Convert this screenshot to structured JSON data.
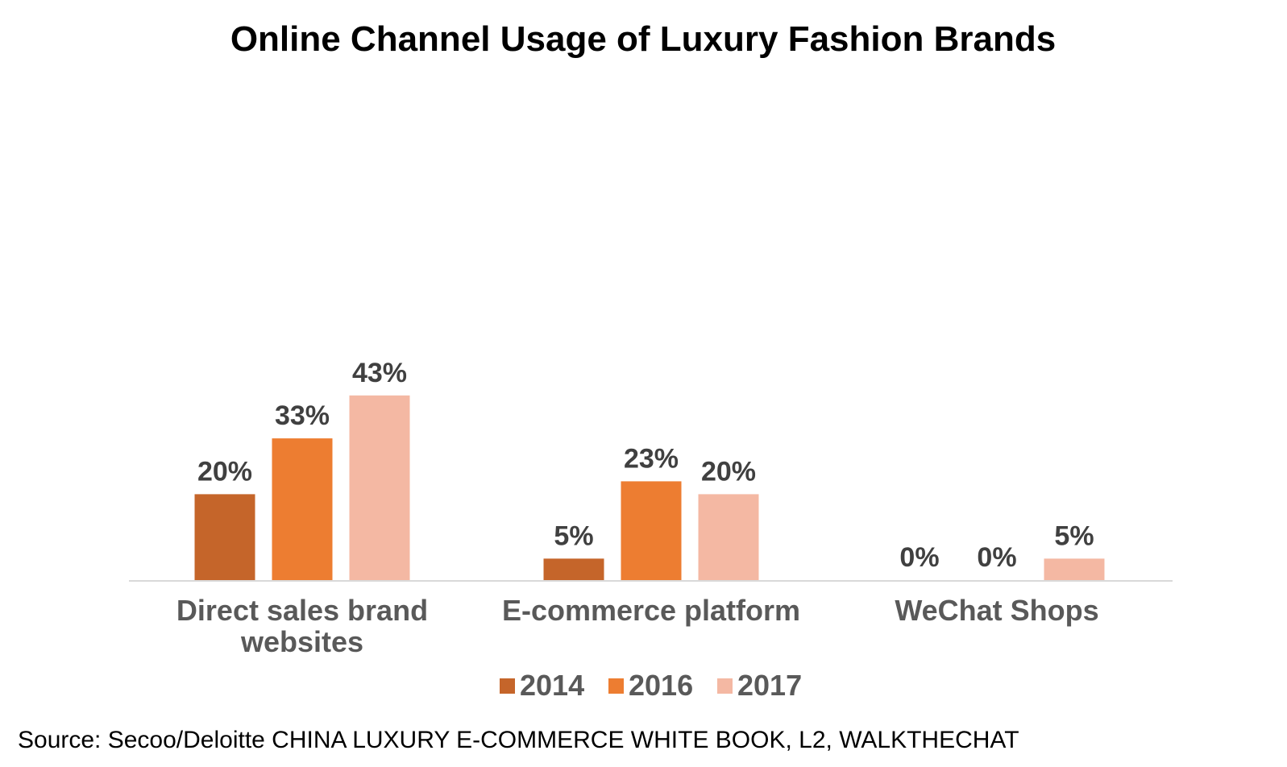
{
  "chart_data": {
    "type": "bar",
    "title": "Online Channel Usage of Luxury Fashion Brands",
    "categories": [
      [
        "Direct sales brand",
        "websites"
      ],
      [
        "E-commerce platform"
      ],
      [
        "WeChat Shops"
      ]
    ],
    "series": [
      {
        "name": "2014",
        "color": "#C5652A",
        "values": [
          20,
          5,
          0
        ],
        "labels": [
          "20%",
          "5%",
          "0%"
        ]
      },
      {
        "name": "2016",
        "color": "#ED7D31",
        "values": [
          33,
          23,
          0
        ],
        "labels": [
          "33%",
          "23%",
          "0%"
        ]
      },
      {
        "name": "2017",
        "color": "#F4B8A3",
        "values": [
          43,
          20,
          5
        ],
        "labels": [
          "43%",
          "20%",
          "5%"
        ]
      }
    ],
    "ylim": [
      0,
      50
    ],
    "grid": false,
    "legend_position": "bottom",
    "xlabel": "",
    "ylabel": "",
    "source": "Source: Secoo/Deloitte  CHINA LUXURY E-COMMERCE WHITE BOOK, L2, WALKTHECHAT"
  }
}
